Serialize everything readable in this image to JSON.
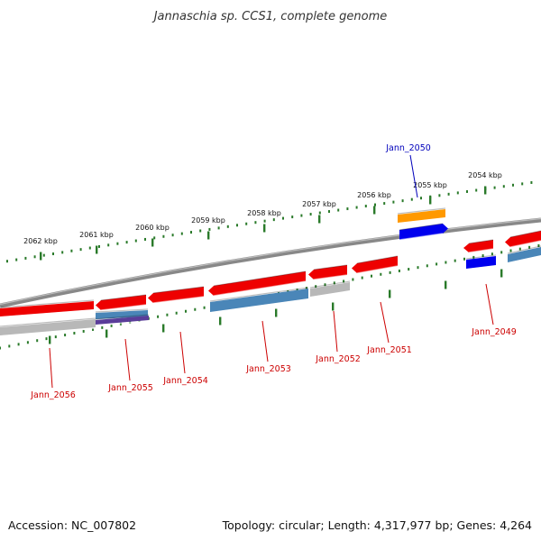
{
  "title": "Jannaschia sp. CCS1, complete genome",
  "footer": {
    "accession": "Accession: NC_007802",
    "summary": "Topology: circular; Length: 4,317,977 bp; Genes: 4,264"
  },
  "ticks": [
    {
      "label": "2062 kbp"
    },
    {
      "label": "2061 kbp"
    },
    {
      "label": "2060 kbp"
    },
    {
      "label": "2059 kbp"
    },
    {
      "label": "2058 kbp"
    },
    {
      "label": "2057 kbp"
    },
    {
      "label": "2056 kbp"
    },
    {
      "label": "2055 kbp"
    },
    {
      "label": "2054 kbp"
    }
  ],
  "genes": [
    {
      "name": "Jann_2056",
      "color": "#cc0000"
    },
    {
      "name": "Jann_2055",
      "color": "#cc0000"
    },
    {
      "name": "Jann_2054",
      "color": "#cc0000"
    },
    {
      "name": "Jann_2053",
      "color": "#cc0000"
    },
    {
      "name": "Jann_2052",
      "color": "#cc0000"
    },
    {
      "name": "Jann_2051",
      "color": "#cc0000"
    },
    {
      "name": "Jann_2050",
      "color": "#0000bb"
    },
    {
      "name": "Jann_2049",
      "color": "#cc0000"
    }
  ],
  "colors": {
    "backbone": "#888888",
    "tick": "#2a7a2a",
    "gene_red": "#ee0000",
    "gene_blue": "#0000ee",
    "gene_orange": "#ff9900",
    "gene_steel": "#4a86b8",
    "gene_purple": "#5a3d99",
    "gene_gray": "#b8b8b8"
  }
}
